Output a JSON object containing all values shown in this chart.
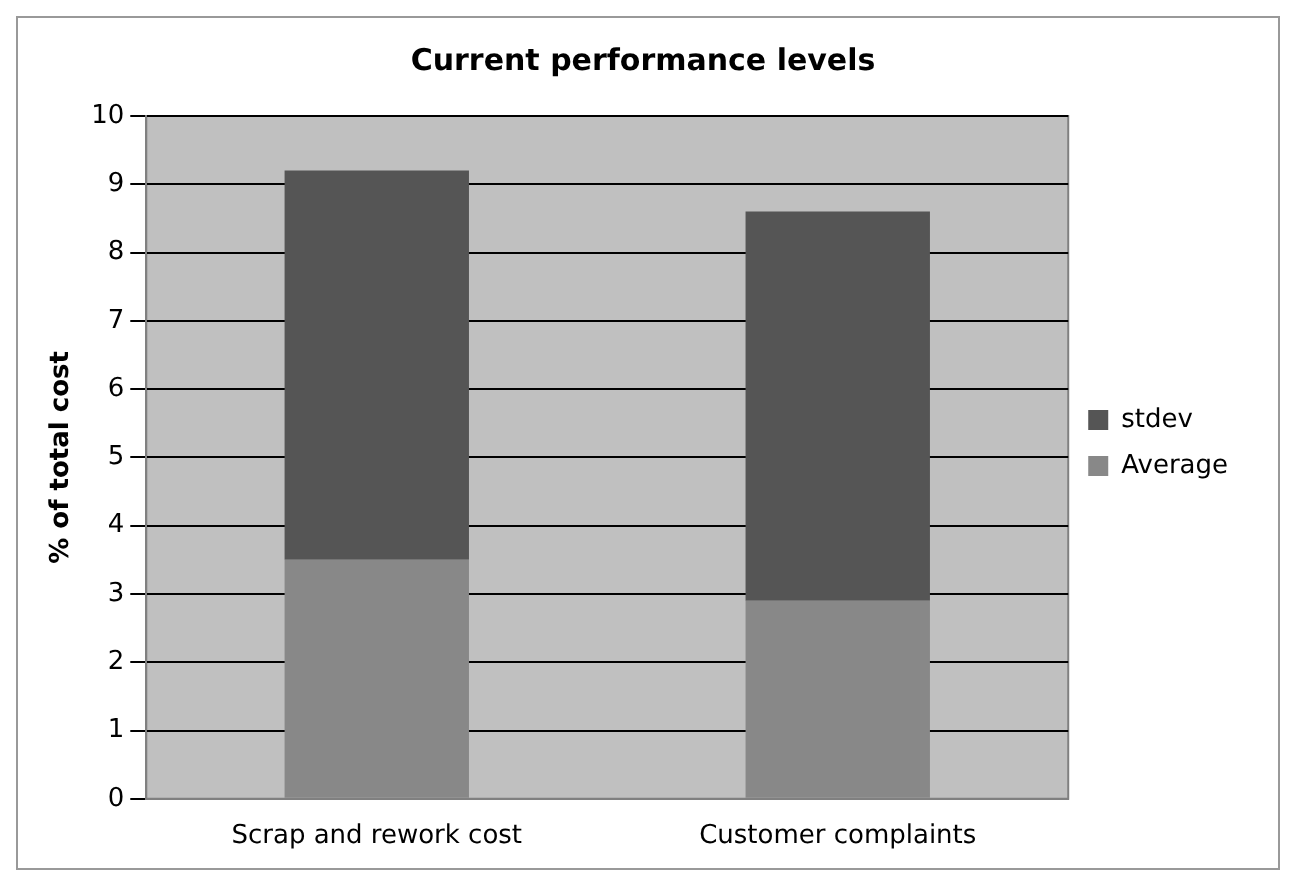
{
  "chart_data": {
    "type": "bar",
    "title": "Current performance levels",
    "ylabel": "% of total cost",
    "categories": [
      "Scrap and rework cost",
      "Customer complaints"
    ],
    "stacked": true,
    "series": [
      {
        "name": "Average",
        "color": "#888888",
        "values": [
          3.5,
          2.9
        ]
      },
      {
        "name": "stdev",
        "color": "#555555",
        "values": [
          5.7,
          5.7
        ]
      }
    ],
    "ylim": [
      0,
      10
    ],
    "yticks": [
      0,
      1,
      2,
      3,
      4,
      5,
      6,
      7,
      8,
      9,
      10
    ],
    "grid": "y",
    "legend": "right"
  }
}
